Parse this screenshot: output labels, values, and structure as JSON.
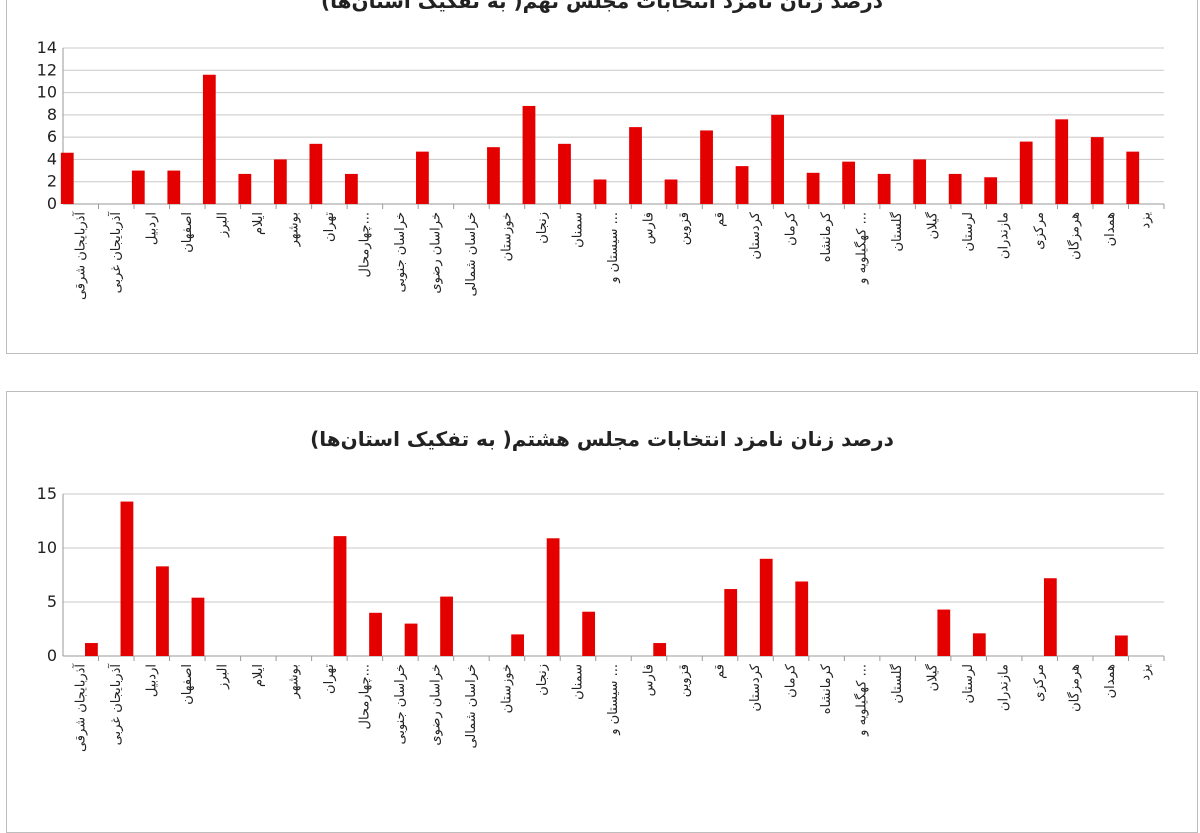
{
  "colors": {
    "bar": "#e50000",
    "grid": "#c8c8c8",
    "axis": "#9a9a9a"
  },
  "chart_data": [
    {
      "type": "bar",
      "title": "درصد زنان نامزد انتخابات مجلس نهم( به تفکیک استان‌ها)",
      "categories": [
        "آذربایجان شرقی",
        "آذربایجان غربی",
        "اردبیل",
        "اصفهان",
        "البرز",
        "ایلام",
        "بوشهر",
        "تهران",
        "چهارمحال...",
        "خراسان جنوبی",
        "خراسان رضوی",
        "خراسان شمالی",
        "خوزستان",
        "زنجان",
        "سمنان",
        "سیستان و ...",
        "فارس",
        "قزوین",
        "قم",
        "کردستان",
        "کرمان",
        "کرمانشاه",
        "کهگیلویه و ...",
        "گلستان",
        "گیلان",
        "لرستان",
        "مازندران",
        "مرکزی",
        "هرمزگان",
        "همدان",
        "یزد"
      ],
      "values": [
        4.6,
        0,
        3.0,
        3.0,
        11.6,
        2.7,
        4.0,
        5.4,
        2.7,
        0,
        4.7,
        0,
        5.1,
        8.8,
        5.4,
        2.2,
        6.9,
        2.2,
        6.6,
        3.4,
        8.0,
        2.8,
        3.8,
        2.7,
        4.0,
        2.7,
        2.4,
        5.6,
        7.6,
        6.0,
        4.7
      ],
      "ylim": [
        0,
        14
      ],
      "yticks": [
        "0",
        "2",
        "4",
        "6",
        "8",
        "10",
        "12",
        "14"
      ],
      "grid": true
    },
    {
      "type": "bar",
      "title": "درصد زنان نامزد انتخابات مجلس هشتم( به تفکیک استان‌ها)",
      "categories": [
        "آذربایجان شرقی",
        "آذربایجان غربی",
        "اردبیل",
        "اصفهان",
        "البرز",
        "ایلام",
        "بوشهر",
        "تهران",
        "چهارمحال...",
        "خراسان جنوبی",
        "خراسان رضوی",
        "خراسان شمالی",
        "خوزستان",
        "زنجان",
        "سمنان",
        "سیستان و ...",
        "فارس",
        "قزوین",
        "قم",
        "کردستان",
        "کرمان",
        "کرمانشاه",
        "کهگیلویه و ...",
        "گلستان",
        "گیلان",
        "لرستان",
        "مازندران",
        "مرکزی",
        "هرمزگان",
        "همدان",
        "یزد"
      ],
      "values": [
        1.2,
        14.3,
        8.3,
        5.4,
        0,
        0,
        0,
        11.1,
        4.0,
        3.0,
        5.5,
        0,
        2.0,
        10.9,
        4.1,
        0,
        1.2,
        0,
        6.2,
        9.0,
        6.9,
        0,
        0,
        0,
        4.3,
        2.1,
        0,
        7.2,
        0,
        1.9,
        0
      ],
      "ylim": [
        0,
        15
      ],
      "yticks": [
        "0",
        "5",
        "10",
        "15"
      ],
      "grid": true
    }
  ]
}
